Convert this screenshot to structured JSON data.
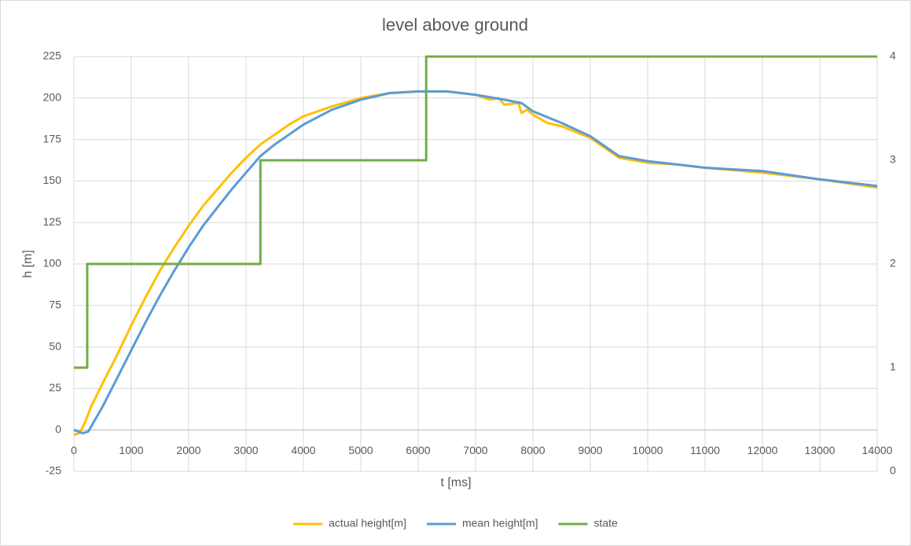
{
  "chart_data": {
    "type": "line",
    "title": "level above ground",
    "x_label": "t [ms]",
    "y_label": "h [m]",
    "xlim": [
      0,
      14000
    ],
    "xticks": [
      0,
      1000,
      2000,
      3000,
      4000,
      5000,
      6000,
      7000,
      8000,
      9000,
      10000,
      11000,
      12000,
      13000,
      14000
    ],
    "ylim": [
      -25,
      225
    ],
    "yticks": [
      -25,
      0,
      25,
      50,
      75,
      100,
      125,
      150,
      175,
      200,
      225
    ],
    "y2lim": [
      0,
      4
    ],
    "y2ticks": [
      0,
      1,
      2,
      3,
      4
    ],
    "grid": true,
    "legend": "bottom",
    "series": [
      {
        "name": "actual height[m]",
        "color": "#ffc000",
        "x": [
          0,
          100,
          200,
          300,
          500,
          750,
          1000,
          1250,
          1500,
          1750,
          2000,
          2250,
          2500,
          2750,
          3000,
          3250,
          3500,
          3750,
          4000,
          4500,
          5000,
          5500,
          6000,
          6500,
          7000,
          7250,
          7400,
          7500,
          7750,
          7800,
          7900,
          8000,
          8250,
          8500,
          9000,
          9250,
          9500,
          10000,
          10500,
          11000,
          12000,
          13000,
          14000
        ],
        "values": [
          -3,
          -2,
          5,
          14,
          28,
          45,
          63,
          80,
          96,
          110,
          123,
          135,
          145,
          155,
          164,
          172,
          178,
          184,
          189,
          195,
          200,
          203,
          204,
          204,
          202,
          199,
          200,
          196,
          197,
          191,
          193,
          190,
          185,
          183,
          176,
          170,
          164,
          161,
          160,
          158,
          155,
          151,
          146
        ]
      },
      {
        "name": "mean height[m]",
        "color": "#5b9bd5",
        "x": [
          0,
          150,
          250,
          500,
          750,
          1000,
          1250,
          1500,
          1750,
          2000,
          2250,
          2500,
          2750,
          3000,
          3250,
          3500,
          3750,
          4000,
          4500,
          5000,
          5500,
          6000,
          6500,
          7000,
          7500,
          7800,
          8000,
          8500,
          9000,
          9250,
          9500,
          10000,
          10500,
          11000,
          12000,
          13000,
          14000
        ],
        "values": [
          0,
          -2,
          -1,
          14,
          31,
          48,
          65,
          81,
          96,
          110,
          123,
          134,
          145,
          155,
          165,
          172,
          178,
          184,
          193,
          199,
          203,
          204,
          204,
          202,
          199,
          197,
          192,
          185,
          177,
          171,
          165,
          162,
          160,
          158,
          156,
          151,
          147
        ]
      },
      {
        "name": "state",
        "color": "#70ad47",
        "axis": "y2",
        "x": [
          0,
          233,
          233,
          3250,
          3250,
          6140,
          6140,
          14000
        ],
        "values": [
          1,
          1,
          2,
          2,
          3,
          3,
          4,
          4
        ]
      }
    ]
  }
}
